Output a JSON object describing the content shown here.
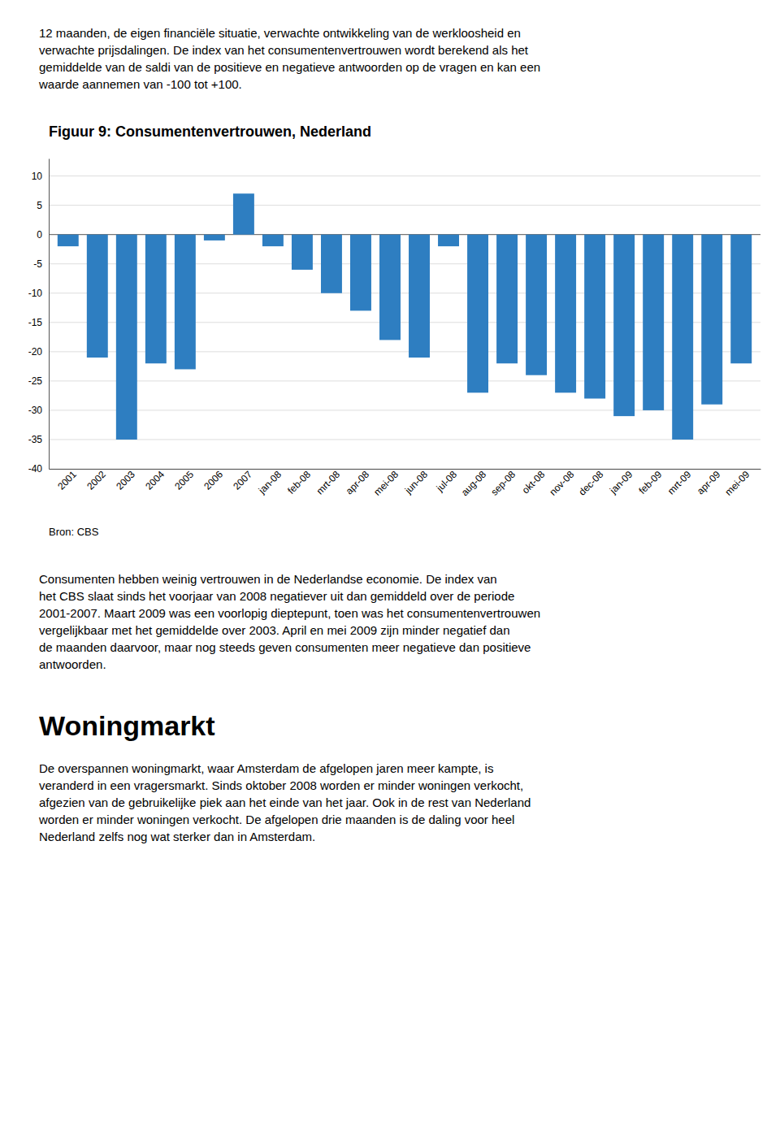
{
  "chart_data": {
    "type": "bar",
    "title": "Figuur 9: Consumentenvertrouwen, Nederland",
    "categories": [
      "2001",
      "2002",
      "2003",
      "2004",
      "2005",
      "2006",
      "2007",
      "jan-08",
      "feb-08",
      "mrt-08",
      "apr-08",
      "mei-08",
      "jun-08",
      "jul-08",
      "aug-08",
      "sep-08",
      "okt-08",
      "nov-08",
      "dec-08",
      "jan-09",
      "feb-09",
      "mrt-09",
      "apr-09",
      "mei-09"
    ],
    "values": [
      -2,
      -21,
      -35,
      -22,
      -23,
      -1,
      7,
      -2,
      -6,
      -10,
      -13,
      -18,
      -21,
      -2,
      -27,
      -22,
      -24,
      -27,
      -28,
      -31,
      -30,
      -35,
      -29,
      -22
    ],
    "color": "#2E7EC1",
    "ylim": [
      -40,
      13
    ],
    "yticks": [
      -40,
      -35,
      -30,
      -25,
      -20,
      -15,
      -10,
      -5,
      0,
      5,
      10
    ],
    "grid": true,
    "annotations": [
      "12 maanden, de eigen financiële situatie, verwachte ontwikkeling van de werkloosheid en\nverwachte prijsdalingen. De index van het consumentenvertrouwen wordt berekend als het\ngemiddelde van de saldi van de positieve en negatieve antwoorden op de vragen en kan een\nwaarde aannemen van -100 tot +100.",
      "Bron: CBS",
      "Consumenten hebben weinig vertrouwen in de Nederlandse economie. De index van\nhet CBS slaat sinds het voorjaar van 2008 negatiever uit dan gemiddeld over de periode\n2001-2007. Maart 2009 was een voorlopig dieptepunt, toen was het consumentenvertrouwen\nvergelijkbaar met het gemiddelde over 2003. April en mei 2009 zijn minder negatief dan\nde maanden daarvoor, maar nog steeds geven consumenten meer negatieve dan positieve\nantwoorden.",
      "Woningmarkt",
      "De overspannen woningmarkt, waar Amsterdam de afgelopen jaren meer kampte, is\nveranderd in een vragersmarkt. Sinds oktober 2008 worden er minder woningen verkocht,\nafgezien van de gebruikelijke piek aan het einde van het jaar. Ook in de rest van Nederland\nworden er minder woningen verkocht. De afgelopen drie maanden is de daling voor heel\nNederland zelfs nog wat sterker dan in Amsterdam."
    ]
  }
}
